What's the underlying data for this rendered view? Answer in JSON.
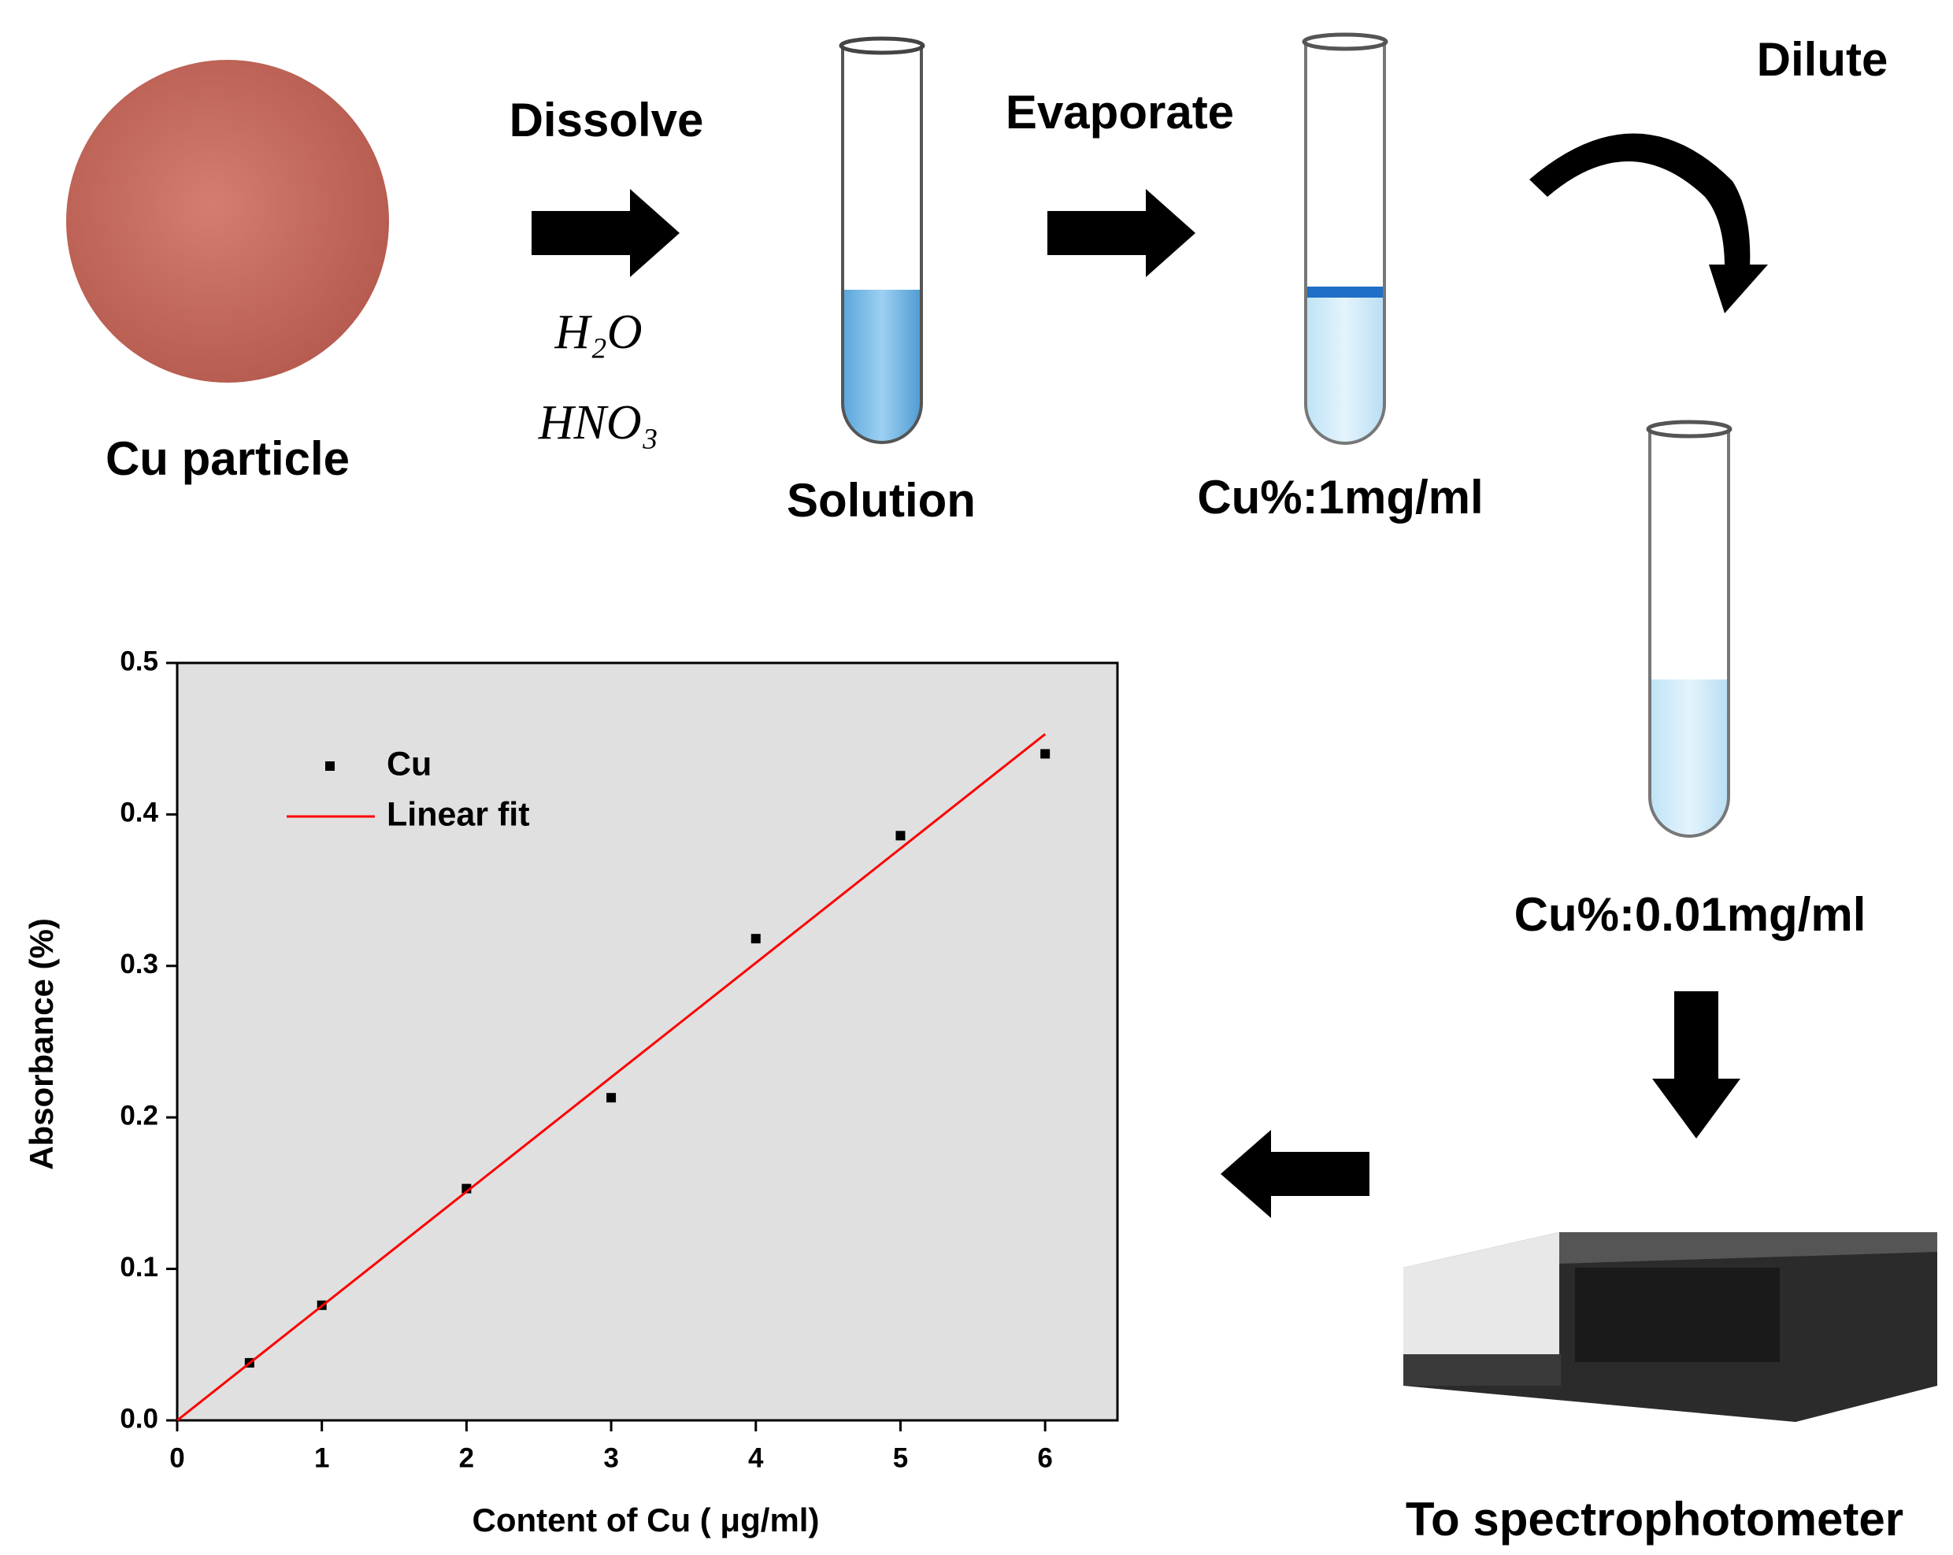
{
  "labels": {
    "cu_particle": "Cu particle",
    "dissolve": "Dissolve",
    "h2o": "H₂O",
    "hno3": "HNO₃",
    "solution": "Solution",
    "evaporate": "Evaporate",
    "conc_1": "Cu%:1mg/ml",
    "dilute": "Dilute",
    "conc_2": "Cu%:0.01mg/ml",
    "spectro": "To spectrophotometer"
  },
  "chart_data": {
    "type": "scatter",
    "x_label": "Content of Cu ( μg/ml)",
    "y_label": "Absorbance (%)",
    "series": [
      {
        "name": "Cu",
        "color": "#000000",
        "x": [
          0.5,
          1,
          2,
          3,
          4,
          5,
          6
        ],
        "values": [
          0.038,
          0.076,
          0.153,
          0.213,
          0.318,
          0.386,
          0.44
        ]
      },
      {
        "name": "Linear fit",
        "color": "#ff0000",
        "x": [
          0,
          6
        ],
        "values": [
          0,
          0.453
        ]
      }
    ],
    "xlim": [
      0,
      6.5
    ],
    "ylim": [
      0,
      0.5
    ],
    "xticks": [
      0,
      1,
      2,
      3,
      4,
      5,
      6
    ],
    "yticks": [
      {
        "value": 0,
        "label": "0.0"
      },
      0.1,
      0.2,
      0.3,
      0.4,
      0.5
    ]
  }
}
